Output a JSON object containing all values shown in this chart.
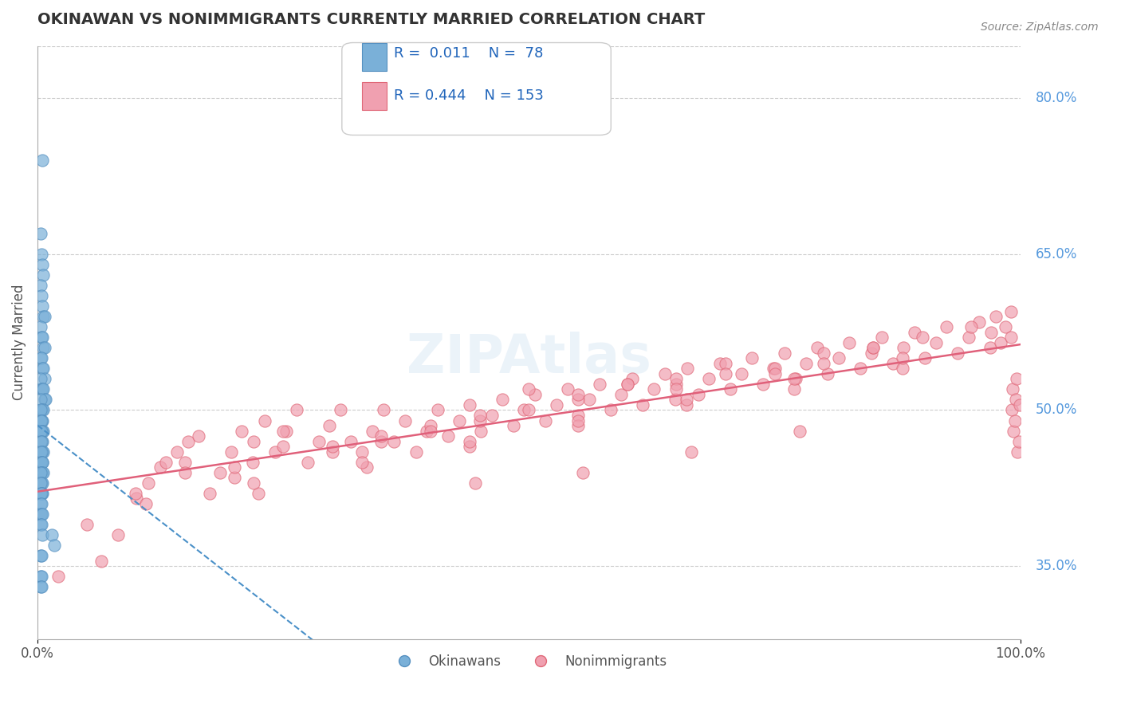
{
  "title": "OKINAWAN VS NONIMMIGRANTS CURRENTLY MARRIED CORRELATION CHART",
  "source": "Source: ZipAtlas.com",
  "xlabel": "",
  "ylabel": "Currently Married",
  "watermark": "ZIPAtlas",
  "legend_blue_r": "0.011",
  "legend_blue_n": "78",
  "legend_pink_r": "0.444",
  "legend_pink_n": "153",
  "xlim": [
    0,
    100
  ],
  "ylim": [
    28,
    85
  ],
  "ytick_positions": [
    35,
    50,
    65,
    80
  ],
  "ytick_labels": [
    "35.0%",
    "50.0%",
    "65.0%",
    "80.0%"
  ],
  "xtick_positions": [
    0,
    100
  ],
  "xtick_labels": [
    "0.0%",
    "100.0%"
  ],
  "grid_color": "#cccccc",
  "title_color": "#333333",
  "source_color": "#888888",
  "blue_color": "#7ab0d8",
  "blue_edge_color": "#5590c0",
  "blue_line_color": "#4a90c8",
  "pink_color": "#f0a0b0",
  "pink_edge_color": "#e06878",
  "pink_line_color": "#e0607a",
  "right_label_color": "#5599dd",
  "okinawan_x": [
    0.5,
    0.3,
    0.4,
    0.5,
    0.6,
    0.3,
    0.4,
    0.5,
    0.6,
    0.7,
    0.3,
    0.4,
    0.5,
    0.6,
    0.7,
    0.3,
    0.4,
    0.5,
    0.6,
    0.7,
    0.3,
    0.4,
    0.5,
    0.6,
    0.7,
    0.8,
    0.3,
    0.4,
    0.5,
    0.6,
    0.3,
    0.4,
    0.5,
    0.3,
    0.4,
    0.5,
    0.6,
    0.3,
    0.4,
    0.5,
    0.3,
    0.4,
    0.5,
    0.6,
    0.3,
    0.4,
    0.5,
    0.3,
    0.4,
    0.5,
    0.3,
    0.4,
    0.5,
    0.6,
    0.3,
    0.4,
    0.5,
    0.3,
    0.4,
    0.5,
    0.3,
    0.4,
    0.3,
    0.4,
    0.3,
    0.4,
    0.5,
    0.3,
    0.4,
    0.5,
    1.5,
    1.7,
    0.3,
    0.4,
    0.3,
    0.4,
    0.3,
    0.4
  ],
  "okinawan_y": [
    74,
    67,
    65,
    64,
    63,
    62,
    61,
    60,
    59,
    59,
    58,
    57,
    57,
    56,
    56,
    55,
    55,
    54,
    54,
    53,
    53,
    52,
    52,
    52,
    51,
    51,
    51,
    50,
    50,
    50,
    50,
    49,
    49,
    49,
    49,
    48,
    48,
    48,
    48,
    47,
    47,
    47,
    46,
    46,
    46,
    46,
    45,
    45,
    45,
    45,
    44,
    44,
    44,
    44,
    44,
    43,
    43,
    43,
    42,
    42,
    42,
    42,
    41,
    41,
    40,
    40,
    40,
    39,
    39,
    38,
    38,
    37,
    36,
    36,
    34,
    34,
    33,
    33
  ],
  "nonimm_x": [
    2.1,
    6.5,
    8.2,
    10.1,
    11.3,
    12.5,
    13.1,
    14.2,
    15.3,
    16.4,
    17.5,
    18.6,
    19.7,
    20.8,
    21.9,
    22.0,
    23.1,
    24.2,
    25.3,
    26.4,
    27.5,
    28.6,
    29.7,
    30.8,
    31.9,
    33.0,
    34.1,
    35.2,
    36.3,
    37.4,
    38.5,
    39.6,
    40.7,
    41.8,
    42.9,
    44.0,
    45.1,
    46.2,
    47.3,
    48.4,
    49.5,
    50.6,
    51.7,
    52.8,
    53.9,
    55.0,
    56.1,
    57.2,
    58.3,
    59.4,
    60.5,
    61.6,
    62.7,
    63.8,
    64.9,
    65.0,
    66.1,
    67.2,
    68.3,
    69.4,
    70.5,
    71.6,
    72.7,
    73.8,
    74.9,
    76.0,
    77.1,
    78.2,
    79.3,
    80.4,
    81.5,
    82.6,
    83.7,
    84.8,
    85.9,
    87.0,
    88.1,
    89.2,
    90.3,
    91.4,
    92.5,
    93.6,
    94.7,
    95.8,
    96.9,
    97.0,
    97.5,
    98.0,
    98.5,
    99.0,
    99.1,
    99.2,
    99.3,
    99.4,
    99.5,
    99.6,
    99.7,
    99.8,
    99.9,
    44.5,
    55.5,
    66.5,
    77.5,
    22.5,
    33.5,
    44.0,
    55.0,
    66.0,
    77.0,
    88.0,
    11.0,
    22.0,
    33.0,
    44.0,
    55.0,
    66.0,
    77.0,
    88.0,
    99.0,
    50.0,
    25.0,
    75.0,
    15.0,
    85.0,
    35.0,
    65.0,
    45.0,
    55.0,
    30.0,
    70.0,
    20.0,
    80.0,
    40.0,
    60.0,
    10.0,
    90.0,
    5.0,
    95.0,
    50.0,
    25.0,
    75.0,
    35.0,
    65.0,
    45.0,
    55.0,
    30.0,
    70.0,
    20.0,
    80.0,
    60.0,
    40.0,
    15.0,
    85.0
  ],
  "nonimm_y": [
    34.0,
    35.5,
    38.0,
    41.5,
    43.0,
    44.5,
    45.0,
    46.0,
    47.0,
    47.5,
    42.0,
    44.0,
    46.0,
    48.0,
    45.0,
    47.0,
    49.0,
    46.0,
    48.0,
    50.0,
    45.0,
    47.0,
    48.5,
    50.0,
    47.0,
    46.0,
    48.0,
    50.0,
    47.0,
    49.0,
    46.0,
    48.0,
    50.0,
    47.5,
    49.0,
    50.5,
    48.0,
    49.5,
    51.0,
    48.5,
    50.0,
    51.5,
    49.0,
    50.5,
    52.0,
    49.5,
    51.0,
    52.5,
    50.0,
    51.5,
    53.0,
    50.5,
    52.0,
    53.5,
    51.0,
    52.5,
    54.0,
    51.5,
    53.0,
    54.5,
    52.0,
    53.5,
    55.0,
    52.5,
    54.0,
    55.5,
    53.0,
    54.5,
    56.0,
    53.5,
    55.0,
    56.5,
    54.0,
    55.5,
    57.0,
    54.5,
    56.0,
    57.5,
    55.0,
    56.5,
    58.0,
    55.5,
    57.0,
    58.5,
    56.0,
    57.5,
    59.0,
    56.5,
    58.0,
    59.5,
    50.0,
    52.0,
    48.0,
    49.0,
    51.0,
    53.0,
    46.0,
    47.0,
    50.5,
    43.0,
    44.0,
    46.0,
    48.0,
    42.0,
    44.5,
    46.5,
    48.5,
    50.5,
    52.0,
    54.0,
    41.0,
    43.0,
    45.0,
    47.0,
    49.0,
    51.0,
    53.0,
    55.0,
    57.0,
    52.0,
    48.0,
    54.0,
    45.0,
    56.0,
    47.0,
    53.0,
    49.0,
    51.0,
    46.0,
    54.5,
    43.5,
    55.5,
    48.5,
    52.5,
    42.0,
    57.0,
    39.0,
    58.0,
    50.0,
    46.5,
    53.5,
    47.5,
    52.0,
    49.5,
    51.5,
    46.5,
    53.5,
    44.5,
    54.5,
    52.5,
    48.0,
    44.0,
    56.0
  ]
}
